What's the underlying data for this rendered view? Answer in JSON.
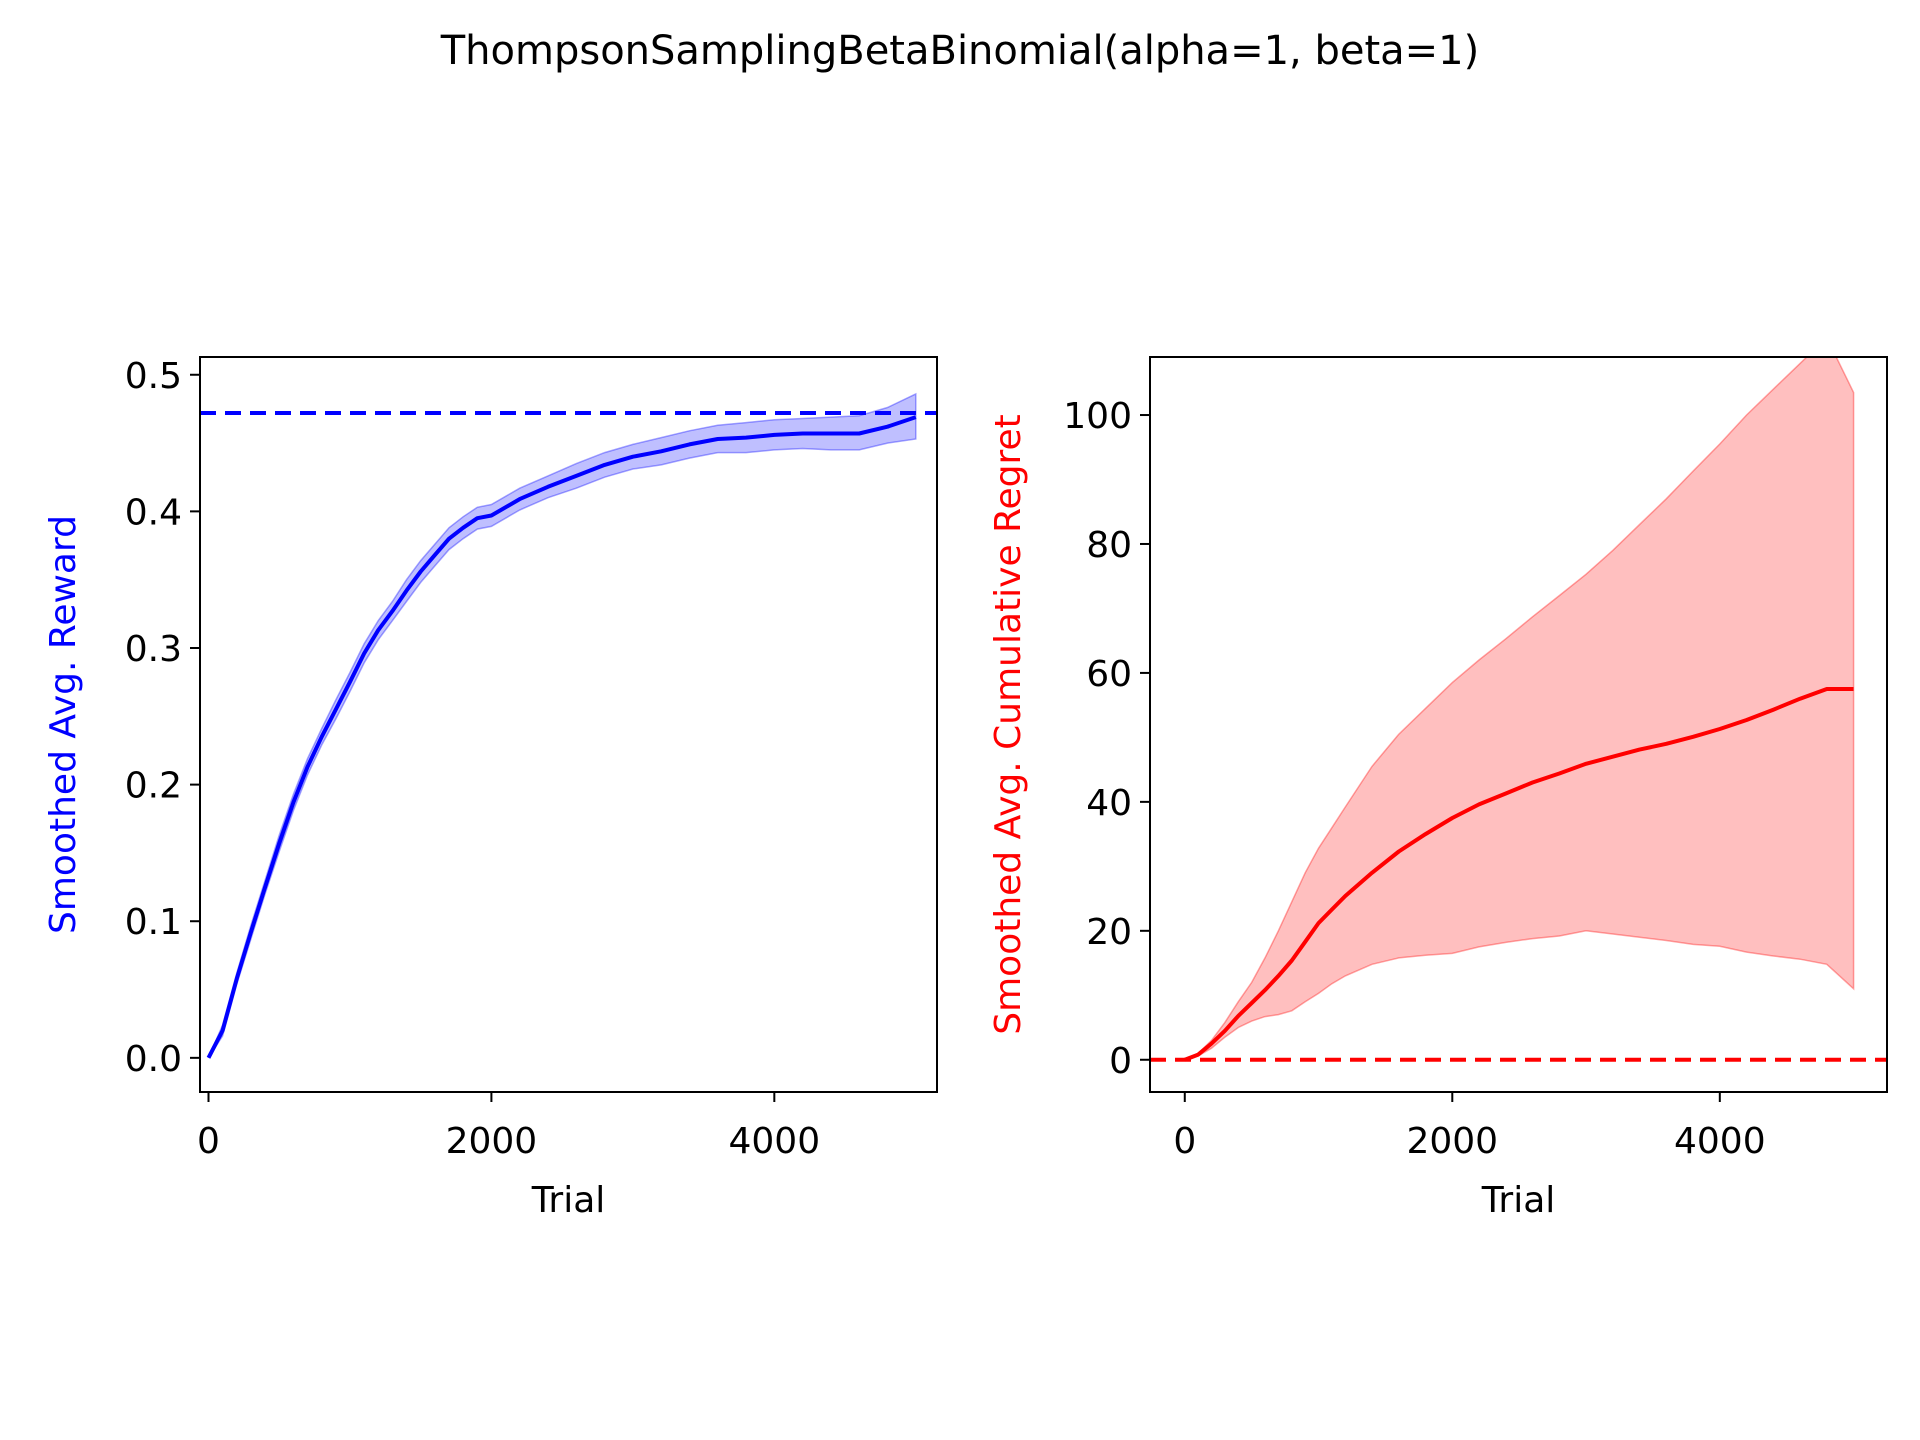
{
  "suptitle": "ThompsonSamplingBetaBinomial(alpha=1, beta=1)",
  "chart_data": [
    {
      "type": "line",
      "xlabel": "Trial",
      "ylabel": "Smoothed Avg. Reward",
      "xlim": [
        -60,
        5150
      ],
      "ylim": [
        -0.025,
        0.513
      ],
      "xticks": [
        0,
        2000,
        4000
      ],
      "xtick_labels": [
        "0",
        "2000",
        "4000"
      ],
      "yticks": [
        0.0,
        0.1,
        0.2,
        0.3,
        0.4,
        0.5
      ],
      "ytick_labels": [
        "0.0",
        "0.1",
        "0.2",
        "0.3",
        "0.4",
        "0.5"
      ],
      "grid": false,
      "color": "#0000ff",
      "ylabel_color": "#0000ff",
      "reference_line": {
        "y": 0.472,
        "style": "dashed",
        "color": "#0000ff"
      },
      "series": [
        {
          "x": [
            0,
            100,
            200,
            300,
            400,
            500,
            600,
            700,
            800,
            900,
            1000,
            1100,
            1200,
            1300,
            1400,
            1500,
            1600,
            1700,
            1800,
            1900,
            2000,
            2200,
            2400,
            2600,
            2800,
            3000,
            3200,
            3400,
            3600,
            3800,
            4000,
            4200,
            4400,
            4600,
            4800,
            5000
          ],
          "y": [
            0.0,
            0.02,
            0.058,
            0.092,
            0.125,
            0.157,
            0.187,
            0.213,
            0.235,
            0.255,
            0.275,
            0.296,
            0.313,
            0.327,
            0.342,
            0.356,
            0.368,
            0.38,
            0.388,
            0.395,
            0.397,
            0.409,
            0.418,
            0.426,
            0.434,
            0.44,
            0.444,
            0.449,
            0.453,
            0.454,
            0.456,
            0.457,
            0.457,
            0.457,
            0.462,
            0.469
          ],
          "lower": [
            0.0,
            0.016,
            0.054,
            0.087,
            0.12,
            0.151,
            0.181,
            0.207,
            0.229,
            0.248,
            0.268,
            0.289,
            0.306,
            0.32,
            0.334,
            0.348,
            0.36,
            0.372,
            0.38,
            0.387,
            0.389,
            0.401,
            0.41,
            0.417,
            0.425,
            0.431,
            0.434,
            0.439,
            0.443,
            0.443,
            0.445,
            0.446,
            0.445,
            0.445,
            0.45,
            0.453
          ],
          "upper": [
            0.0,
            0.024,
            0.062,
            0.097,
            0.13,
            0.163,
            0.193,
            0.219,
            0.241,
            0.262,
            0.282,
            0.303,
            0.32,
            0.334,
            0.35,
            0.364,
            0.376,
            0.388,
            0.396,
            0.403,
            0.405,
            0.417,
            0.426,
            0.435,
            0.443,
            0.449,
            0.454,
            0.459,
            0.463,
            0.465,
            0.467,
            0.468,
            0.469,
            0.47,
            0.476,
            0.486
          ]
        }
      ]
    },
    {
      "type": "line",
      "xlabel": "Trial",
      "ylabel": "Smoothed Avg. Cumulative Regret",
      "xlim": [
        -260,
        5250
      ],
      "ylim": [
        -5,
        109
      ],
      "xticks": [
        0,
        2000,
        4000
      ],
      "xtick_labels": [
        "0",
        "2000",
        "4000"
      ],
      "yticks": [
        0,
        20,
        40,
        60,
        80,
        100
      ],
      "ytick_labels": [
        "0",
        "20",
        "40",
        "60",
        "80",
        "100"
      ],
      "grid": false,
      "color": "#ff0000",
      "ylabel_color": "#ff0000",
      "reference_line": {
        "y": 0,
        "style": "dashed",
        "color": "#ff0000"
      },
      "series": [
        {
          "x": [
            0,
            100,
            200,
            300,
            400,
            500,
            600,
            700,
            800,
            900,
            1000,
            1100,
            1200,
            1400,
            1600,
            1800,
            2000,
            2200,
            2400,
            2600,
            2800,
            3000,
            3200,
            3400,
            3600,
            3800,
            4000,
            4200,
            4400,
            4600,
            4800,
            5000
          ],
          "y": [
            0,
            0.8,
            2.5,
            4.5,
            6.8,
            8.8,
            10.8,
            13,
            15.4,
            18.3,
            21.2,
            23.3,
            25.4,
            29.0,
            32.3,
            35.0,
            37.5,
            39.6,
            41.3,
            43.0,
            44.4,
            45.9,
            47.0,
            48.1,
            49.0,
            50.1,
            51.3,
            52.7,
            54.3,
            56.0,
            57.5,
            57.5
          ],
          "lower": [
            0,
            0.6,
            1.8,
            3.5,
            5.0,
            6.0,
            6.7,
            7.0,
            7.6,
            9.0,
            10.3,
            11.8,
            13.0,
            14.8,
            15.8,
            16.2,
            16.5,
            17.5,
            18.2,
            18.8,
            19.2,
            20.0,
            19.5,
            19.0,
            18.5,
            17.9,
            17.6,
            16.7,
            16.1,
            15.6,
            14.8,
            11.0
          ],
          "upper": [
            0,
            1.0,
            3.0,
            5.8,
            9.0,
            12.0,
            15.8,
            20.0,
            24.5,
            29.0,
            32.8,
            36.0,
            39.2,
            45.5,
            50.5,
            54.5,
            58.5,
            62.0,
            65.3,
            68.7,
            72.0,
            75.3,
            79.0,
            83.0,
            87.0,
            91.3,
            95.5,
            100.0,
            104.0,
            108.0,
            112.0,
            103.5
          ]
        }
      ]
    }
  ]
}
